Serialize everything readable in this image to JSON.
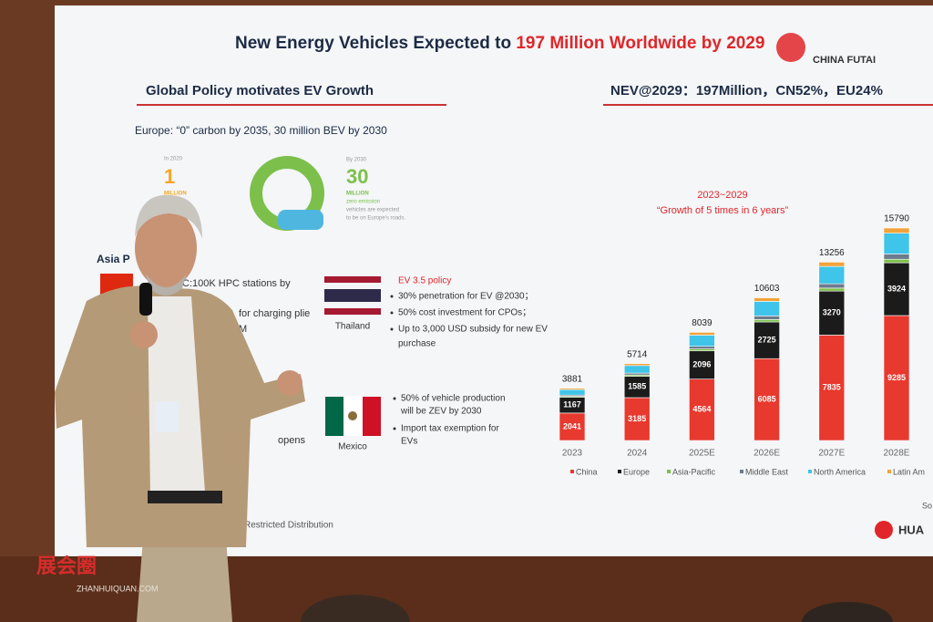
{
  "slide": {
    "title_prefix": "New Energy Vehicles Expected to",
    "title_highlight": "197 Million Worldwide by 2029",
    "logo": "CHINA FUTAI",
    "left_heading": "Global Policy motivates EV Growth",
    "right_heading": "NEV@2029：197Million，CN52%，EU24%",
    "europe": "Europe: “0” carbon by 2035, 30 million BEV by 2030",
    "in_2020": "In 2020",
    "one": "1",
    "million_1": "MILLION",
    "by_2030": "By 2030",
    "thirty": "30",
    "million_2": "MILLION",
    "zero_emission": [
      "zero emission",
      "vehicles are expected",
      "to be on Europe's roads."
    ],
    "asia": "Asia P",
    "asia_lines": [
      "C:100K HPC stations  by",
      "for charging plie",
      "M"
    ],
    "thailand": "Thailand",
    "thailand_policy": "EV 3.5 policy",
    "thailand_bullets": [
      "30% penetration for EV @2030；",
      "50% cost investment for CPOs；",
      "Up to 3,000 USD subsidy for new EV",
      "purchase"
    ],
    "mexico": "Mexico",
    "mexico_bullets": [
      "50% of vehicle production",
      "will  be ZEV by 2030",
      "Import tax exemption for",
      "EVs"
    ],
    "opens": "opens",
    "footer": "Restricted Distribution",
    "brand": "HUA",
    "source": "So"
  },
  "watermark": {
    "name": "展会圈",
    "site": "ZHANHUIQUAN.COM"
  },
  "chart_data": {
    "type": "bar",
    "stacked": true,
    "subtitle": "2023~2029",
    "annotation": "“Growth of 5 times in 6 years”",
    "categories": [
      "2023",
      "2024",
      "2025E",
      "2026E",
      "2027E",
      "2028E"
    ],
    "series": [
      {
        "name": "China",
        "color": "#e8392f",
        "show_labels": true,
        "values": [
          2041,
          3185,
          4564,
          6085,
          7835,
          9285
        ]
      },
      {
        "name": "Europe",
        "color": "#1b1b1b",
        "show_labels": true,
        "values": [
          1167,
          1585,
          2096,
          2725,
          3270,
          3924
        ]
      },
      {
        "name": "Asia-Pacific",
        "color": "#7cc04b",
        "show_labels": false,
        "values": [
          70,
          100,
          140,
          180,
          220,
          260
        ]
      },
      {
        "name": "Middle East",
        "color": "#6d7c8c",
        "show_labels": false,
        "values": [
          100,
          140,
          200,
          270,
          320,
          390
        ]
      },
      {
        "name": "North America",
        "color": "#3fc4ea",
        "show_labels": false,
        "values": [
          400,
          560,
          830,
          1080,
          1290,
          1550
        ]
      },
      {
        "name": "Latin Am",
        "color": "#f2a33a",
        "show_labels": false,
        "values": [
          103,
          144,
          209,
          263,
          321,
          381
        ]
      }
    ],
    "totals": [
      3881,
      5714,
      8039,
      10603,
      13256,
      15790
    ]
  }
}
